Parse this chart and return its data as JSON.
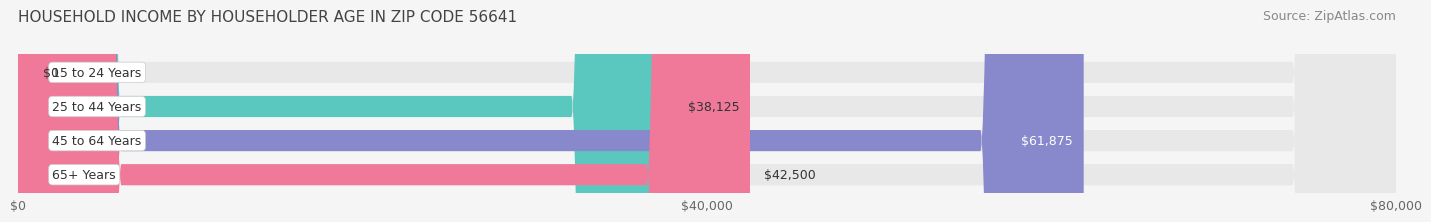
{
  "title": "HOUSEHOLD INCOME BY HOUSEHOLDER AGE IN ZIP CODE 56641",
  "source": "Source: ZipAtlas.com",
  "categories": [
    "15 to 24 Years",
    "25 to 44 Years",
    "45 to 64 Years",
    "65+ Years"
  ],
  "values": [
    0,
    38125,
    61875,
    42500
  ],
  "bar_colors": [
    "#c9b8d8",
    "#5bc8c0",
    "#8888cc",
    "#f07898"
  ],
  "label_colors": [
    "#333333",
    "#333333",
    "#ffffff",
    "#333333"
  ],
  "x_max": 80000,
  "x_ticks": [
    0,
    40000,
    80000
  ],
  "x_tick_labels": [
    "$0",
    "$40,000",
    "$80,000"
  ],
  "bg_color": "#f5f5f5",
  "bar_bg_color": "#e8e8e8",
  "title_fontsize": 11,
  "source_fontsize": 9,
  "label_fontsize": 9,
  "tick_fontsize": 9,
  "bar_label_fontsize": 9
}
